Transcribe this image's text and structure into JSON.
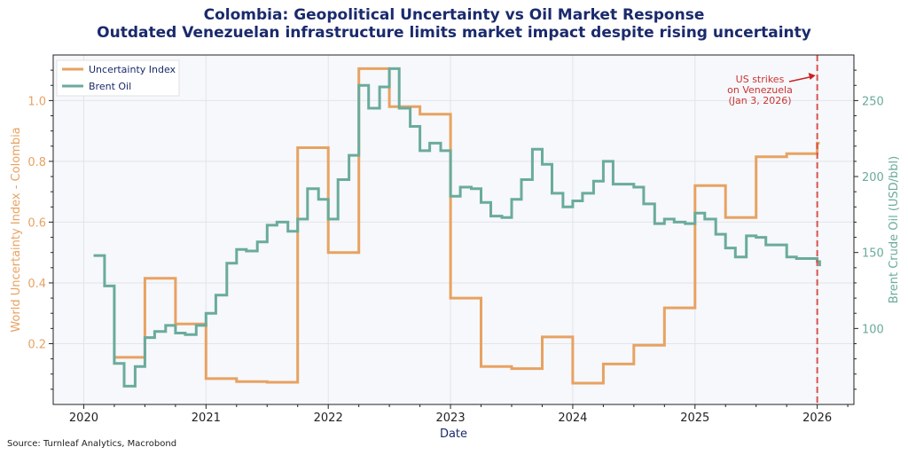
{
  "title_line1": "Colombia: Geopolitical Uncertainty vs Oil Market Response",
  "title_line2": "Outdated Venezuelan infrastructure limits market impact despite rising uncertainty",
  "source": "Source: Turnleaf Analytics, Macrobond",
  "colors": {
    "uncertainty": "#e8a262",
    "brent": "#6aab9c",
    "event": "#d9534f",
    "title": "#1a2a6c",
    "plot_bg": "#f6f8fb",
    "grid": "#e1e4ea"
  },
  "chart_data": {
    "type": "line",
    "title": "Colombia: Geopolitical Uncertainty vs Oil Market Response",
    "subtitle": "Outdated Venezuelan infrastructure limits market impact despite rising uncertainty",
    "xlabel": "Date",
    "ylabel_left": "World Uncertainty Index - Colombia",
    "ylabel_right": "Brent Crude Oil (USD/bbl)",
    "xlim": [
      2019.75,
      2026.3
    ],
    "ylim_left": [
      0.0,
      1.15
    ],
    "ylim_right": [
      50,
      280
    ],
    "x_ticks": [
      2020,
      2021,
      2022,
      2023,
      2024,
      2025,
      2026
    ],
    "x_tick_labels": [
      "2020",
      "2021",
      "2022",
      "2023",
      "2024",
      "2025",
      "2026"
    ],
    "y_ticks_left": [
      0.2,
      0.4,
      0.6,
      0.8,
      1.0
    ],
    "y_tick_labels_left": [
      "0.2",
      "0.4",
      "0.6",
      "0.8",
      "1.0"
    ],
    "y_ticks_right": [
      100,
      150,
      200,
      250
    ],
    "y_tick_labels_right": [
      "100",
      "150",
      "200",
      "250"
    ],
    "legend": [
      "Uncertainty Index",
      "Brent Oil"
    ],
    "legend_position": "top-left",
    "series": [
      {
        "name": "Uncertainty Index",
        "axis": "left",
        "step": "post",
        "x": [
          2020.25,
          2020.5,
          2020.75,
          2021.0,
          2021.25,
          2021.5,
          2021.75,
          2022.0,
          2022.25,
          2022.5,
          2022.75,
          2023.0,
          2023.25,
          2023.5,
          2023.75,
          2024.0,
          2024.25,
          2024.5,
          2024.75,
          2025.0,
          2025.25,
          2025.5,
          2025.75,
          2026.0,
          2026.02
        ],
        "values": [
          0.155,
          0.415,
          0.265,
          0.085,
          0.075,
          0.073,
          0.845,
          0.5,
          1.105,
          0.98,
          0.955,
          0.35,
          0.125,
          0.118,
          0.222,
          0.07,
          0.133,
          0.195,
          0.318,
          0.72,
          0.615,
          0.815,
          0.825,
          0.86,
          0.86
        ]
      },
      {
        "name": "Brent Oil",
        "axis": "right",
        "step": "post",
        "x": [
          2020.08,
          2020.17,
          2020.25,
          2020.33,
          2020.42,
          2020.5,
          2020.58,
          2020.67,
          2020.75,
          2020.83,
          2020.92,
          2021.0,
          2021.08,
          2021.17,
          2021.25,
          2021.33,
          2021.42,
          2021.5,
          2021.58,
          2021.67,
          2021.75,
          2021.83,
          2021.92,
          2022.0,
          2022.08,
          2022.17,
          2022.25,
          2022.33,
          2022.42,
          2022.5,
          2022.58,
          2022.67,
          2022.75,
          2022.83,
          2022.92,
          2023.0,
          2023.08,
          2023.17,
          2023.25,
          2023.33,
          2023.42,
          2023.5,
          2023.58,
          2023.67,
          2023.75,
          2023.83,
          2023.92,
          2024.0,
          2024.08,
          2024.17,
          2024.25,
          2024.33,
          2024.42,
          2024.5,
          2024.58,
          2024.67,
          2024.75,
          2024.83,
          2024.92,
          2025.0,
          2025.08,
          2025.17,
          2025.25,
          2025.33,
          2025.42,
          2025.5,
          2025.58,
          2025.67,
          2025.75,
          2025.83,
          2025.92,
          2026.0,
          2026.02
        ],
        "values": [
          148,
          128,
          77,
          62,
          75,
          94,
          98,
          102,
          97,
          96,
          102,
          110,
          122,
          143,
          152,
          151,
          157,
          168,
          170,
          164,
          172,
          192,
          185,
          172,
          198,
          214,
          260,
          245,
          259,
          271,
          245,
          233,
          217,
          222,
          217,
          187,
          193,
          192,
          183,
          174,
          173,
          185,
          198,
          218,
          208,
          189,
          180,
          184,
          189,
          197,
          210,
          195,
          195,
          193,
          182,
          169,
          172,
          170,
          169,
          176,
          172,
          162,
          153,
          147,
          161,
          160,
          155,
          155,
          147,
          146,
          146,
          144,
          141
        ]
      }
    ],
    "event": {
      "x": 2026.0,
      "label_lines": [
        "US strikes",
        "on Venezuela",
        "(Jan 3, 2026)"
      ]
    }
  }
}
